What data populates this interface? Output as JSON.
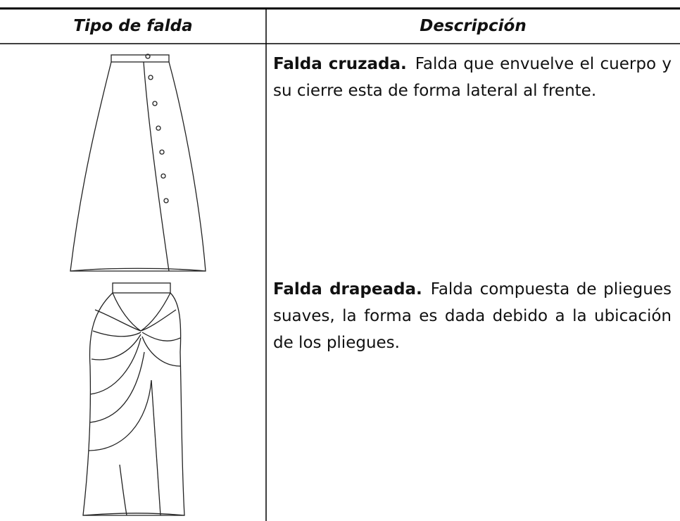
{
  "table": {
    "header": [
      "Tipo de falda",
      "Descripción"
    ],
    "rows": [
      {
        "name": "Falda cruzada.",
        "description": "Falda que envuelve el cuerpo y su cierre esta de forma lateral al frente."
      },
      {
        "name": "Falda drapeada.",
        "description": "Falda compuesta de pliegues suaves, la forma es dada debido a la ubicación de los pliegues."
      }
    ]
  }
}
